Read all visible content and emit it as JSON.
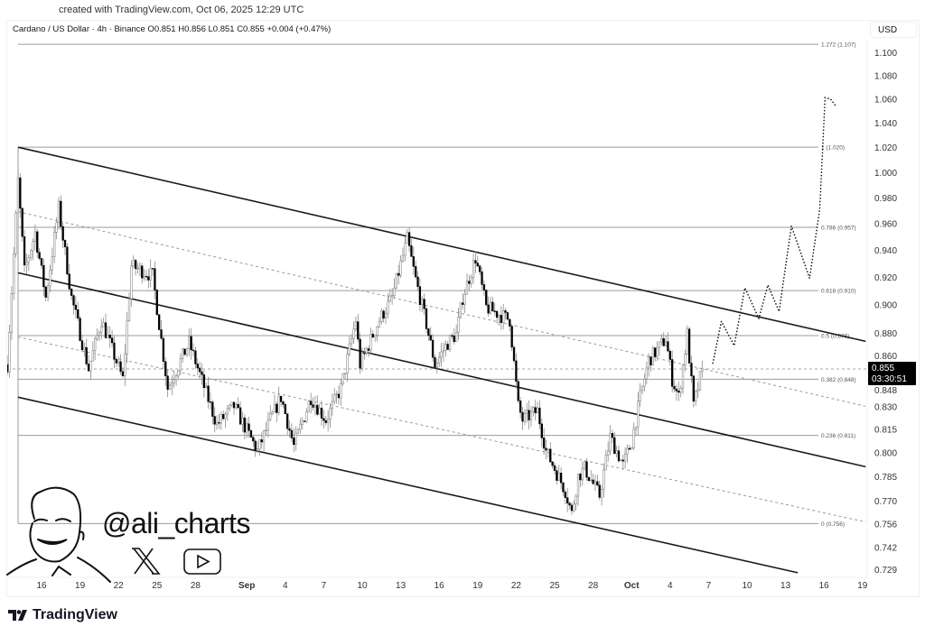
{
  "header": {
    "created": "created with TradingView.com, Oct 06, 2025 12:29 UTC",
    "legend": "Cardano / US Dollar · 4h · Binance  O0.851  H0.856  L0.851  C0.855  +0.004 (+0.47%)",
    "currency": "USD"
  },
  "watermark": {
    "handle": "@ali_charts",
    "icons": [
      "x-logo-icon",
      "youtube-icon",
      "avatar-sketch"
    ]
  },
  "footer": {
    "brand": "TradingView"
  },
  "colors": {
    "candle_up": "#ffffff",
    "candle_down": "#000000",
    "wick": "#8a8a8a",
    "channel": "#1a1a1a",
    "fib": "#9a9a9a",
    "price_label_bg": "#000000"
  },
  "chart_data": {
    "type": "candlestick",
    "symbol": "Cardano / US Dollar",
    "interval": "4h",
    "exchange": "Binance",
    "ohlc_last": {
      "open": 0.851,
      "high": 0.856,
      "low": 0.851,
      "close": 0.855,
      "change": "+0.004 (+0.47%)"
    },
    "y_scale": "log",
    "ylim": [
      0.729,
      1.112
    ],
    "y_ticks": [
      "1.100",
      "1.080",
      "1.060",
      "1.040",
      "1.020",
      "1.000",
      "0.980",
      "0.960",
      "0.940",
      "0.920",
      "0.900",
      "0.880",
      "0.860",
      "0.848",
      "0.830",
      "0.815",
      "0.800",
      "0.785",
      "0.770",
      "0.756",
      "0.742",
      "0.729"
    ],
    "x_ticks": [
      {
        "label": "16",
        "date": "2025-08-16"
      },
      {
        "label": "19",
        "date": "2025-08-19"
      },
      {
        "label": "22",
        "date": "2025-08-22"
      },
      {
        "label": "25",
        "date": "2025-08-25"
      },
      {
        "label": "28",
        "date": "2025-08-28"
      },
      {
        "label": "Sep",
        "date": "2025-09-01",
        "bold": true
      },
      {
        "label": "4",
        "date": "2025-09-04"
      },
      {
        "label": "7",
        "date": "2025-09-07"
      },
      {
        "label": "10",
        "date": "2025-09-10"
      },
      {
        "label": "13",
        "date": "2025-09-13"
      },
      {
        "label": "16",
        "date": "2025-09-16"
      },
      {
        "label": "19",
        "date": "2025-09-19"
      },
      {
        "label": "22",
        "date": "2025-09-22"
      },
      {
        "label": "25",
        "date": "2025-09-25"
      },
      {
        "label": "28",
        "date": "2025-09-28"
      },
      {
        "label": "Oct",
        "date": "2025-10-01",
        "bold": true
      },
      {
        "label": "4",
        "date": "2025-10-04"
      },
      {
        "label": "7",
        "date": "2025-10-07"
      },
      {
        "label": "10",
        "date": "2025-10-10"
      },
      {
        "label": "13",
        "date": "2025-10-13"
      },
      {
        "label": "16",
        "date": "2025-10-16"
      },
      {
        "label": "19",
        "date": "2025-10-19"
      }
    ],
    "price_path": [
      [
        "2025-08-13T08:00",
        0.858
      ],
      [
        "2025-08-14T04:00",
        0.993
      ],
      [
        "2025-08-14T16:00",
        0.924
      ],
      [
        "2025-08-15T12:00",
        0.953
      ],
      [
        "2025-08-16T08:00",
        0.905
      ],
      [
        "2025-08-17T08:00",
        0.972
      ],
      [
        "2025-08-18T08:00",
        0.905
      ],
      [
        "2025-08-19T16:00",
        0.855
      ],
      [
        "2025-08-20T16:00",
        0.889
      ],
      [
        "2025-08-22T08:00",
        0.848
      ],
      [
        "2025-08-23T00:00",
        0.928
      ],
      [
        "2025-08-24T16:00",
        0.921
      ],
      [
        "2025-08-25T20:00",
        0.842
      ],
      [
        "2025-08-27T12:00",
        0.873
      ],
      [
        "2025-08-29T16:00",
        0.818
      ],
      [
        "2025-08-31T00:00",
        0.83
      ],
      [
        "2025-09-01T20:00",
        0.801
      ],
      [
        "2025-09-02T20:00",
        0.821
      ],
      [
        "2025-09-03T16:00",
        0.836
      ],
      [
        "2025-09-04T16:00",
        0.804
      ],
      [
        "2025-09-06T00:00",
        0.836
      ],
      [
        "2025-09-07T04:00",
        0.821
      ],
      [
        "2025-09-08T08:00",
        0.842
      ],
      [
        "2025-09-09T12:00",
        0.889
      ],
      [
        "2025-09-09T20:00",
        0.858
      ],
      [
        "2025-09-11T08:00",
        0.889
      ],
      [
        "2025-09-12T08:00",
        0.905
      ],
      [
        "2025-09-13T12:00",
        0.948
      ],
      [
        "2025-09-14T04:00",
        0.918
      ],
      [
        "2025-09-15T00:00",
        0.886
      ],
      [
        "2025-09-15T16:00",
        0.858
      ],
      [
        "2025-09-16T16:00",
        0.873
      ],
      [
        "2025-09-17T08:00",
        0.879
      ],
      [
        "2025-09-17T20:00",
        0.905
      ],
      [
        "2025-09-18T20:00",
        0.934
      ],
      [
        "2025-09-19T16:00",
        0.898
      ],
      [
        "2025-09-21T12:00",
        0.889
      ],
      [
        "2025-09-22T04:00",
        0.83
      ],
      [
        "2025-09-22T12:00",
        0.821
      ],
      [
        "2025-09-23T16:00",
        0.827
      ],
      [
        "2025-09-24T08:00",
        0.801
      ],
      [
        "2025-09-25T20:00",
        0.776
      ],
      [
        "2025-09-26T08:00",
        0.762
      ],
      [
        "2025-09-26T20:00",
        0.785
      ],
      [
        "2025-09-27T08:00",
        0.79
      ],
      [
        "2025-09-28T12:00",
        0.773
      ],
      [
        "2025-09-29T08:00",
        0.81
      ],
      [
        "2025-09-30T08:00",
        0.792
      ],
      [
        "2025-10-01T00:00",
        0.807
      ],
      [
        "2025-10-01T16:00",
        0.836
      ],
      [
        "2025-10-02T08:00",
        0.861
      ],
      [
        "2025-10-03T00:00",
        0.868
      ],
      [
        "2025-10-03T16:00",
        0.876
      ],
      [
        "2025-10-04T04:00",
        0.848
      ],
      [
        "2025-10-04T16:00",
        0.836
      ],
      [
        "2025-10-05T08:00",
        0.879
      ],
      [
        "2025-10-05T20:00",
        0.83
      ],
      [
        "2025-10-06T12:00",
        0.855
      ]
    ],
    "last_price": {
      "value": "0.855",
      "countdown": "03:30:51"
    },
    "fib_levels": [
      {
        "ratio": "1.272",
        "price": 1.107,
        "label": "1.272 (1.107)"
      },
      {
        "ratio": "1",
        "price": 1.02,
        "label": "1 (1.020)"
      },
      {
        "ratio": "0.786",
        "price": 0.957,
        "label": "0.786 (0.957)"
      },
      {
        "ratio": "0.618",
        "price": 0.91,
        "label": "0.618 (0.910)"
      },
      {
        "ratio": "0.5",
        "price": 0.878,
        "label": "0.5 (0.878)"
      },
      {
        "ratio": "0.382",
        "price": 0.848,
        "label": "0.382 (0.848)"
      },
      {
        "ratio": "0.236",
        "price": 0.811,
        "label": "0.236 (0.811)"
      },
      {
        "ratio": "0",
        "price": 0.756,
        "label": "0 (0.756)"
      }
    ],
    "channel_lines": [
      {
        "style": "solid",
        "from": [
          "2025-08-14T04:00",
          1.02
        ],
        "to": [
          "2025-10-19T06:00",
          0.874
        ]
      },
      {
        "style": "dashed",
        "from": [
          "2025-08-14T04:00",
          0.969
        ],
        "to": [
          "2025-10-19T06:00",
          0.83
        ]
      },
      {
        "style": "solid",
        "from": [
          "2025-08-14T04:00",
          0.923
        ],
        "to": [
          "2025-10-19T06:00",
          0.791
        ]
      },
      {
        "style": "dashed",
        "from": [
          "2025-08-14T04:00",
          0.877
        ],
        "to": [
          "2025-10-19T06:00",
          0.757
        ]
      },
      {
        "style": "solid",
        "from": [
          "2025-08-14T04:00",
          0.836
        ],
        "to": [
          "2025-10-13T23:00",
          0.727
        ]
      }
    ],
    "projection_path": [
      [
        "2025-10-07T08:00",
        0.859
      ],
      [
        "2025-10-08T00:00",
        0.888
      ],
      [
        "2025-10-09T00:00",
        0.871
      ],
      [
        "2025-10-09T20:00",
        0.912
      ],
      [
        "2025-10-10T22:00",
        0.89
      ],
      [
        "2025-10-11T15:00",
        0.914
      ],
      [
        "2025-10-12T12:00",
        0.895
      ],
      [
        "2025-10-13T11:00",
        0.958
      ],
      [
        "2025-10-14T21:00",
        0.919
      ],
      [
        "2025-10-15T16:00",
        0.971
      ],
      [
        "2025-10-16T02:00",
        1.061
      ],
      [
        "2025-10-16T12:00",
        1.06
      ],
      [
        "2025-10-16T22:00",
        1.054
      ]
    ]
  }
}
